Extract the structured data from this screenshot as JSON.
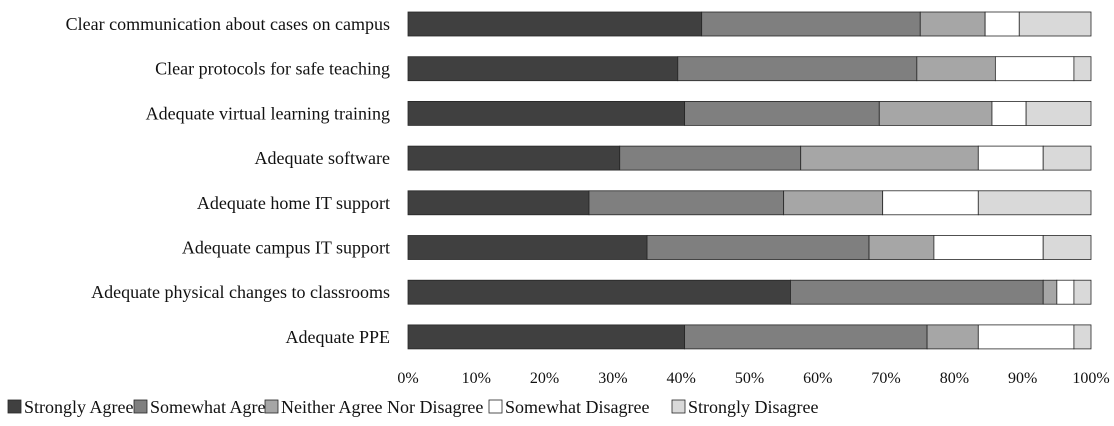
{
  "chart_data": {
    "type": "bar",
    "orientation": "horizontal",
    "stacked": true,
    "categories": [
      "Clear communication about cases on campus",
      "Clear protocols for safe teaching",
      "Adequate virtual learning training",
      "Adequate software",
      "Adequate home IT support",
      "Adequate campus IT support",
      "Adequate physical changes to classrooms",
      "Adequate PPE"
    ],
    "series": [
      {
        "name": "Strongly Agree",
        "color": "#404040",
        "values": [
          43,
          39.5,
          40.5,
          31,
          26.5,
          35,
          56,
          40.5
        ]
      },
      {
        "name": "Somewhat Agree",
        "color": "#7f7f7f",
        "values": [
          32,
          35,
          28.5,
          26.5,
          28.5,
          32.5,
          37,
          35.5
        ]
      },
      {
        "name": "Neither Agree Nor Disagree",
        "color": "#a6a6a6",
        "values": [
          9.5,
          11.5,
          16.5,
          26,
          14.5,
          9.5,
          2,
          7.5
        ]
      },
      {
        "name": "Somewhat Disagree",
        "color": "#ffffff",
        "values": [
          5,
          11.5,
          5,
          9.5,
          14,
          16,
          2.5,
          14
        ]
      },
      {
        "name": "Strongly Disagree",
        "color": "#d9d9d9",
        "values": [
          10.5,
          2.5,
          9.5,
          7,
          16.5,
          7,
          2.5,
          2.5
        ]
      }
    ],
    "xlim": [
      0,
      100
    ],
    "x_ticks": [
      "0%",
      "10%",
      "20%",
      "30%",
      "40%",
      "50%",
      "60%",
      "70%",
      "80%",
      "90%",
      "100%"
    ],
    "title": "",
    "xlabel": "",
    "ylabel": "",
    "grid": false,
    "legend": "bottom",
    "legend_marker": "■"
  }
}
